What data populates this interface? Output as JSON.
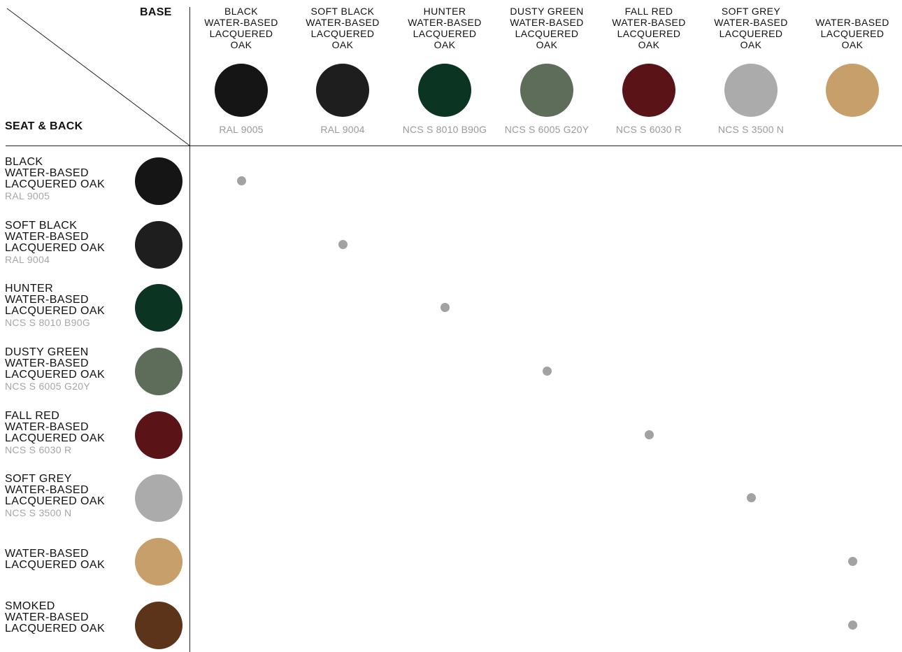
{
  "header": {
    "base_label": "BASE",
    "seat_back_label": "SEAT & BACK"
  },
  "columns": [
    {
      "name": "BLACK\nWATER-BASED\nLACQUERED\nOAK",
      "code": "RAL 9005",
      "color": "#151515"
    },
    {
      "name": "SOFT BLACK\nWATER-BASED\nLACQUERED\nOAK",
      "code": "RAL 9004",
      "color": "#1e1e1e"
    },
    {
      "name": "HUNTER\nWATER-BASED\nLACQUERED\nOAK",
      "code": "NCS S 8010 B90G",
      "color": "#0c3422"
    },
    {
      "name": "DUSTY GREEN\nWATER-BASED\nLACQUERED\nOAK",
      "code": "NCS S 6005 G20Y",
      "color": "#5e6c5a"
    },
    {
      "name": "FALL RED\nWATER-BASED\nLACQUERED\nOAK",
      "code": "NCS S 6030 R",
      "color": "#5a1418"
    },
    {
      "name": "SOFT GREY\nWATER-BASED\nLACQUERED\nOAK",
      "code": "NCS S 3500 N",
      "color": "#ababab"
    },
    {
      "name": "WATER-BASED\nLACQUERED\nOAK",
      "code": "",
      "color": "#c79f6b"
    }
  ],
  "rows": [
    {
      "name": "BLACK\nWATER-BASED\nLACQUERED OAK",
      "code": "RAL 9005",
      "color": "#151515",
      "available_base": 1
    },
    {
      "name": "SOFT BLACK\nWATER-BASED\nLACQUERED OAK",
      "code": "RAL 9004",
      "color": "#1e1e1e",
      "available_base": 2
    },
    {
      "name": "HUNTER\nWATER-BASED\nLACQUERED OAK",
      "code": "NCS S 8010 B90G",
      "color": "#0c3422",
      "available_base": 3
    },
    {
      "name": "DUSTY GREEN\nWATER-BASED\nLACQUERED OAK",
      "code": "NCS S 6005 G20Y",
      "color": "#5e6c5a",
      "available_base": 4
    },
    {
      "name": "FALL RED\nWATER-BASED\nLACQUERED OAK",
      "code": "NCS S 6030 R",
      "color": "#5a1418",
      "available_base": 5
    },
    {
      "name": "SOFT GREY\nWATER-BASED\nLACQUERED OAK",
      "code": "NCS S 3500 N",
      "color": "#ababab",
      "available_base": 6
    },
    {
      "name": "WATER-BASED\nLACQUERED OAK",
      "code": "",
      "color": "#c79f6b",
      "available_base": 7
    },
    {
      "name": "SMOKED\nWATER-BASED\nLACQUERED OAK",
      "code": "",
      "color": "#5b3419",
      "available_base": 7
    }
  ],
  "colors": {
    "line": "#222222",
    "code_text": "#9a9a9a",
    "dot": "#a2a2a2"
  }
}
